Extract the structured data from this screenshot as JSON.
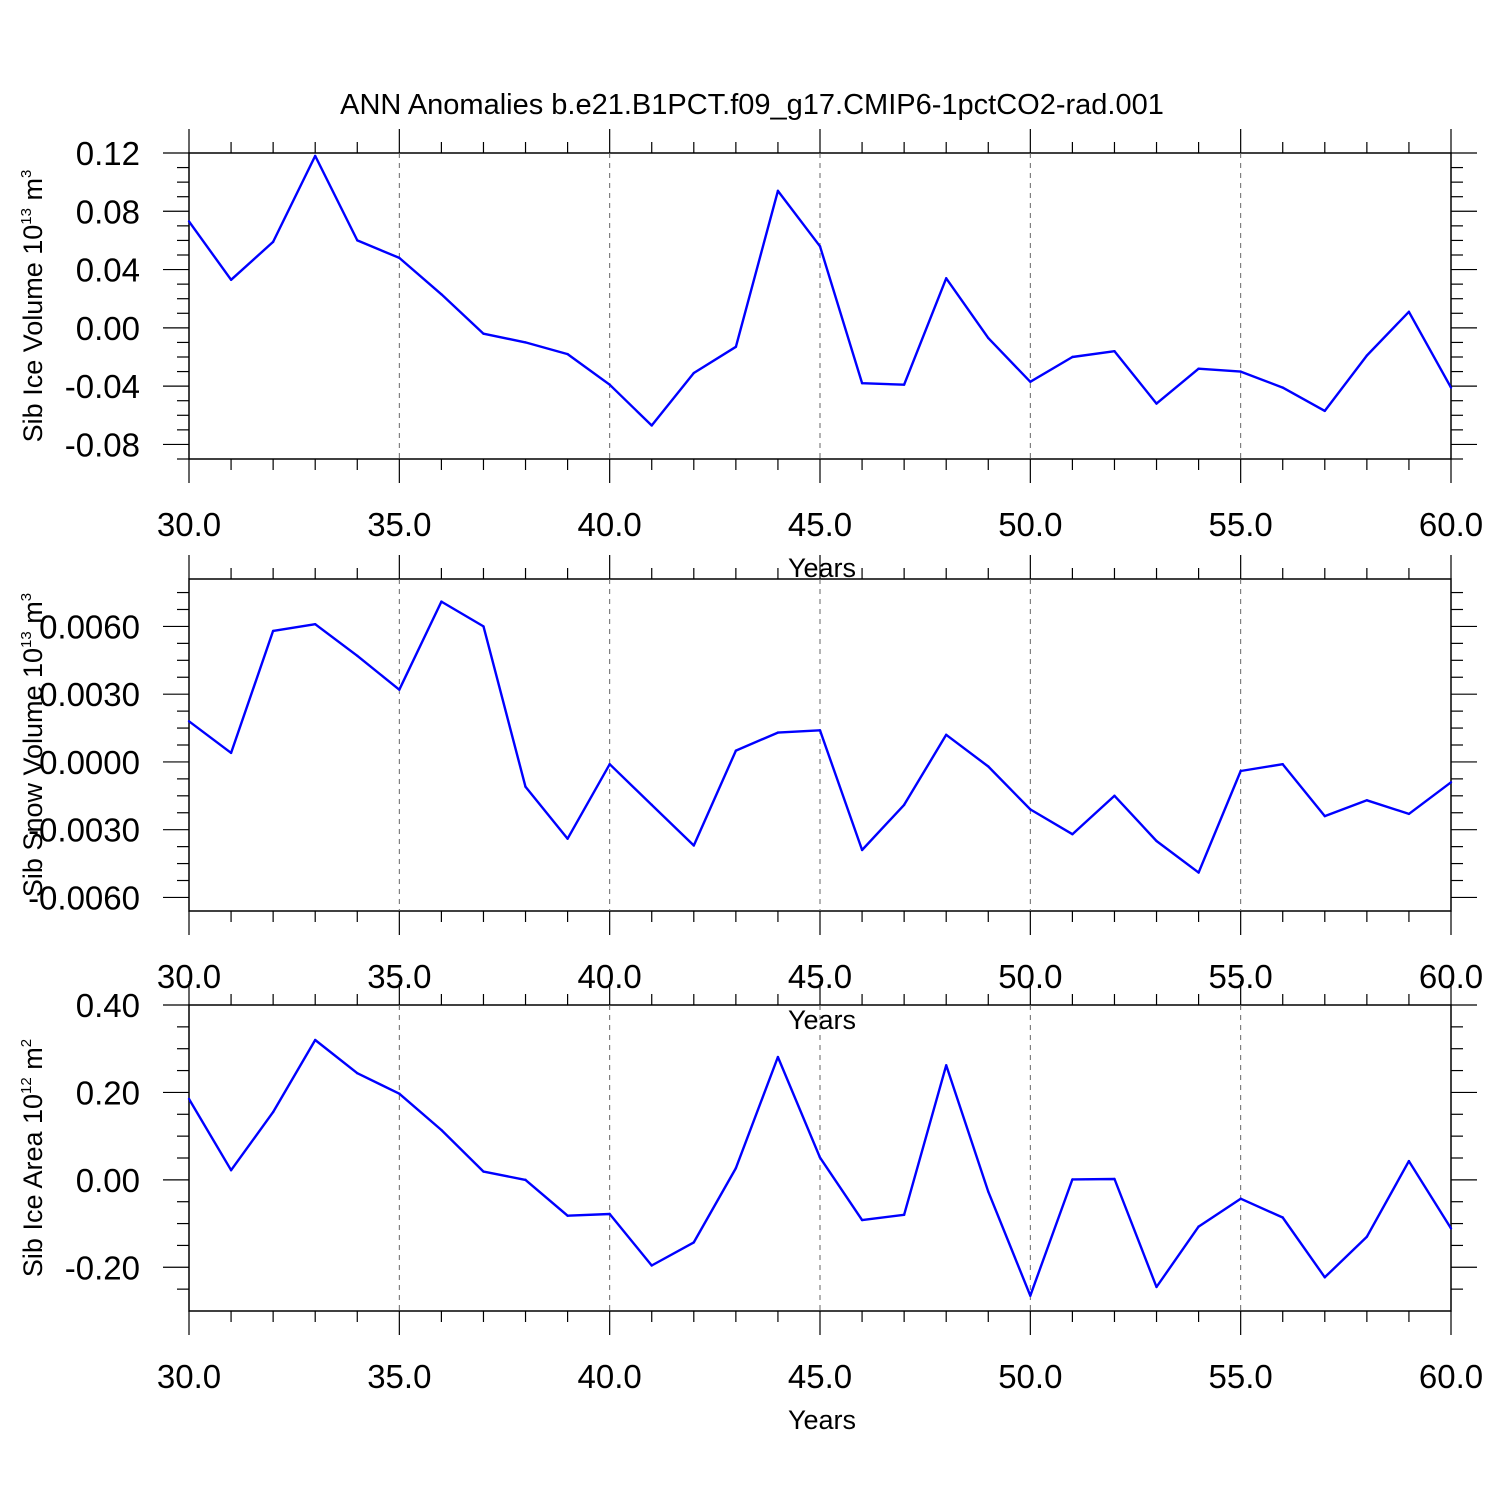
{
  "figure_title": "ANN Anomalies b.e21.B1PCT.f09_g17.CMIP6-1pctCO2-rad.001",
  "chart_data": [
    {
      "type": "line",
      "ylabel": "Sib Ice Volume 10",
      "ylabel_exp": "13",
      "ylabel_unit": " m",
      "ylabel_unit_exp": "3",
      "xlabel": "Years",
      "xlim": [
        30,
        60
      ],
      "ylim": [
        -0.09,
        0.12
      ],
      "yticks": [
        0.12,
        0.08,
        0.04,
        0.0,
        -0.04,
        -0.08
      ],
      "ytick_labels": [
        "0.12",
        "0.08",
        "0.04",
        "0.00",
        "-0.04",
        "-0.08"
      ],
      "xticks": [
        30,
        35,
        40,
        45,
        50,
        55,
        60
      ],
      "xtick_labels": [
        "30.0",
        "35.0",
        "40.0",
        "45.0",
        "50.0",
        "55.0",
        "60.0"
      ],
      "color": "#0000ff",
      "x": [
        30,
        31,
        32,
        33,
        34,
        35,
        36,
        37,
        38,
        39,
        40,
        41,
        42,
        43,
        44,
        45,
        46,
        47,
        48,
        49,
        50,
        51,
        52,
        53,
        54,
        55,
        56,
        57,
        58,
        59,
        60
      ],
      "y": [
        0.073,
        0.033,
        0.059,
        0.118,
        0.06,
        0.048,
        0.023,
        -0.004,
        -0.01,
        -0.018,
        -0.039,
        -0.067,
        -0.031,
        -0.013,
        0.094,
        0.056,
        -0.038,
        -0.039,
        0.034,
        -0.007,
        -0.037,
        -0.02,
        -0.016,
        -0.052,
        -0.028,
        -0.03,
        -0.041,
        -0.057,
        -0.019,
        0.011,
        -0.041
      ]
    },
    {
      "type": "line",
      "ylabel": "Sib Snow Volume 10",
      "ylabel_exp": "13",
      "ylabel_unit": " m",
      "ylabel_unit_exp": "3",
      "xlabel": "Years",
      "xlim": [
        30,
        60
      ],
      "ylim": [
        -0.0066,
        0.0081
      ],
      "yticks": [
        0.006,
        0.003,
        0.0,
        -0.003,
        -0.006
      ],
      "ytick_labels": [
        "0.0060",
        "0.0030",
        "0.0000",
        "-0.0030",
        "-0.0060"
      ],
      "xticks": [
        30,
        35,
        40,
        45,
        50,
        55,
        60
      ],
      "xtick_labels": [
        "30.0",
        "35.0",
        "40.0",
        "45.0",
        "50.0",
        "55.0",
        "60.0"
      ],
      "color": "#0000ff",
      "x": [
        30,
        31,
        32,
        33,
        34,
        35,
        36,
        37,
        38,
        39,
        40,
        41,
        42,
        43,
        44,
        45,
        46,
        47,
        48,
        49,
        50,
        51,
        52,
        53,
        54,
        55,
        56,
        57,
        58,
        59,
        60
      ],
      "y": [
        0.0018,
        0.0004,
        0.0058,
        0.0061,
        0.0047,
        0.0032,
        0.0071,
        0.006,
        -0.0011,
        -0.0034,
        -0.0001,
        -0.0019,
        -0.0037,
        0.0005,
        0.0013,
        0.0014,
        -0.0039,
        -0.0019,
        0.0012,
        -0.0002,
        -0.0021,
        -0.0032,
        -0.0015,
        -0.0035,
        -0.0049,
        -0.0004,
        -0.0001,
        -0.0024,
        -0.0017,
        -0.0023,
        -0.0009
      ]
    },
    {
      "type": "line",
      "ylabel": "Sib Ice Area 10",
      "ylabel_exp": "12",
      "ylabel_unit": " m",
      "ylabel_unit_exp": "2",
      "xlabel": "Years",
      "xlim": [
        30,
        60
      ],
      "ylim": [
        -0.3,
        0.4
      ],
      "yticks": [
        0.4,
        0.2,
        0.0,
        -0.2
      ],
      "ytick_labels": [
        "0.40",
        "0.20",
        "0.00",
        "-0.20"
      ],
      "xticks": [
        30,
        35,
        40,
        45,
        50,
        55,
        60
      ],
      "xtick_labels": [
        "30.0",
        "35.0",
        "40.0",
        "45.0",
        "50.0",
        "55.0",
        "60.0"
      ],
      "color": "#0000ff",
      "x": [
        30,
        31,
        32,
        33,
        34,
        35,
        36,
        37,
        38,
        39,
        40,
        41,
        42,
        43,
        44,
        45,
        46,
        47,
        48,
        49,
        50,
        51,
        52,
        53,
        54,
        55,
        56,
        57,
        58,
        59,
        60
      ],
      "y": [
        0.185,
        0.022,
        0.155,
        0.32,
        0.244,
        0.197,
        0.114,
        0.019,
        0.0,
        -0.082,
        -0.078,
        -0.196,
        -0.143,
        0.027,
        0.281,
        0.051,
        -0.092,
        -0.08,
        0.262,
        -0.027,
        -0.265,
        0.001,
        0.002,
        -0.245,
        -0.107,
        -0.043,
        -0.086,
        -0.223,
        -0.13,
        0.043,
        -0.111
      ]
    }
  ]
}
